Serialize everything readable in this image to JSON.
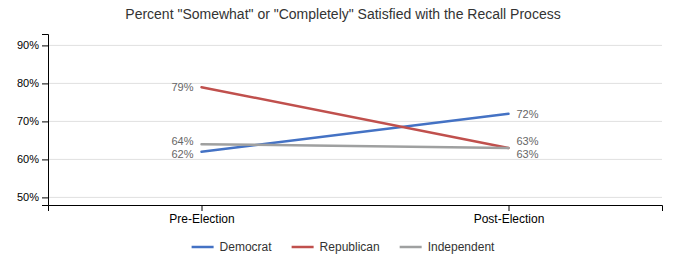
{
  "chart_data": {
    "type": "line",
    "title": "Percent \"Somewhat\" or \"Completely\" Satisfied with the Recall Process",
    "categories": [
      "Pre-Election",
      "Post-Election"
    ],
    "series": [
      {
        "name": "Democrat",
        "color": "#4472C4",
        "values": [
          62,
          72
        ],
        "value_labels": [
          "62%",
          "72%"
        ]
      },
      {
        "name": "Republican",
        "color": "#C0504D",
        "values": [
          79,
          63
        ],
        "value_labels": [
          "79%",
          "63%"
        ]
      },
      {
        "name": "Independent",
        "color": "#9FA0A0",
        "values": [
          64,
          63
        ],
        "value_labels": [
          "64%",
          "63%"
        ]
      }
    ],
    "ylim": [
      48,
      93
    ],
    "yticks": [
      {
        "value": 50,
        "label": "50%"
      },
      {
        "value": 60,
        "label": "60%"
      },
      {
        "value": 70,
        "label": "70%"
      },
      {
        "value": 80,
        "label": "80%"
      },
      {
        "value": 90,
        "label": "90%"
      }
    ],
    "grid": true,
    "data_labels": true,
    "legend": "bottom"
  }
}
